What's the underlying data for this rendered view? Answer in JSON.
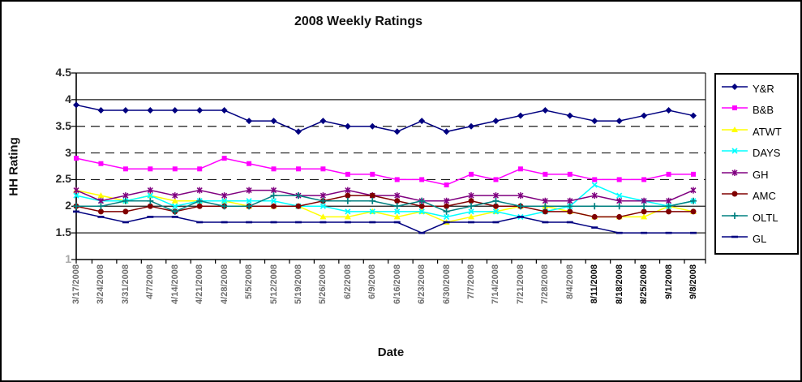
{
  "page": {
    "title": "2008 Weekly Ratings"
  },
  "chart_data": {
    "type": "line",
    "title": "2008 Weekly Ratings",
    "xlabel": "Date",
    "ylabel": "HH Rating",
    "ylim": [
      1,
      4.5
    ],
    "ytick_labels": [
      "4.5",
      "4",
      "3.5",
      "3",
      "2.5",
      "2",
      "1.5",
      "1"
    ],
    "grid": "horizontal gridlines every 0.5, lines at 2.5/3/3.5 appear dashed",
    "legend_position": "right",
    "x_tick_emphasis_from_index": 21,
    "x": [
      "3/17/2008",
      "3/24/2008",
      "3/31/2008",
      "4/7/2008",
      "4/14/2008",
      "4/21/2008",
      "4/28/2008",
      "5/5/2008",
      "5/12/2008",
      "5/19/2008",
      "5/26/2008",
      "6/2/2008",
      "6/9/2008",
      "6/16/2008",
      "6/23/2008",
      "6/30/2008",
      "7/7/2008",
      "7/14/2008",
      "7/21/2008",
      "7/28/2008",
      "8/4/2008",
      "8/11/2008",
      "8/18/2008",
      "8/25/2008",
      "9/1/2008",
      "9/8/2008"
    ],
    "series": [
      {
        "name": "Y&R",
        "marker": "diamond",
        "color": "#000080",
        "values": [
          3.9,
          3.8,
          3.8,
          3.8,
          3.8,
          3.8,
          3.8,
          3.6,
          3.6,
          3.4,
          3.6,
          3.5,
          3.5,
          3.4,
          3.6,
          3.4,
          3.5,
          3.6,
          3.7,
          3.8,
          3.7,
          3.6,
          3.6,
          3.7,
          3.8,
          3.7
        ]
      },
      {
        "name": "B&B",
        "marker": "square",
        "color": "#FF00FF",
        "values": [
          2.9,
          2.8,
          2.7,
          2.7,
          2.7,
          2.7,
          2.9,
          2.8,
          2.7,
          2.7,
          2.7,
          2.6,
          2.6,
          2.5,
          2.5,
          2.4,
          2.6,
          2.5,
          2.7,
          2.6,
          2.6,
          2.5,
          2.5,
          2.5,
          2.6,
          2.6
        ]
      },
      {
        "name": "ATWT",
        "marker": "triangle",
        "color": "#FFFF00",
        "values": [
          2.3,
          2.2,
          2.1,
          2.2,
          2.1,
          2.1,
          2.1,
          2.0,
          2.0,
          2.0,
          1.8,
          1.8,
          1.9,
          1.8,
          1.9,
          1.7,
          1.8,
          1.9,
          2.0,
          2.0,
          1.9,
          1.8,
          1.8,
          1.8,
          2.0,
          1.9
        ]
      },
      {
        "name": "DAYS",
        "marker": "x",
        "color": "#00FFFF",
        "values": [
          2.2,
          2.1,
          2.1,
          2.2,
          2.0,
          2.1,
          2.1,
          2.1,
          2.1,
          2.0,
          2.0,
          1.9,
          1.9,
          1.9,
          1.9,
          1.8,
          1.9,
          1.9,
          1.8,
          1.9,
          2.0,
          2.4,
          2.2,
          2.1,
          2.0,
          2.1
        ]
      },
      {
        "name": "GH",
        "marker": "star",
        "color": "#800080",
        "values": [
          2.3,
          2.1,
          2.2,
          2.3,
          2.2,
          2.3,
          2.2,
          2.3,
          2.3,
          2.2,
          2.2,
          2.3,
          2.2,
          2.2,
          2.1,
          2.1,
          2.2,
          2.2,
          2.2,
          2.1,
          2.1,
          2.2,
          2.1,
          2.1,
          2.1,
          2.3
        ]
      },
      {
        "name": "AMC",
        "marker": "circle",
        "color": "#800000",
        "values": [
          2.0,
          1.9,
          1.9,
          2.0,
          1.9,
          2.0,
          2.0,
          2.0,
          2.0,
          2.0,
          2.1,
          2.2,
          2.2,
          2.1,
          2.0,
          2.0,
          2.1,
          2.0,
          2.0,
          1.9,
          1.9,
          1.8,
          1.8,
          1.9,
          1.9,
          1.9
        ]
      },
      {
        "name": "OLTL",
        "marker": "plus",
        "color": "#008080",
        "values": [
          2.0,
          2.0,
          2.1,
          2.1,
          1.9,
          2.1,
          2.0,
          2.0,
          2.2,
          2.2,
          2.1,
          2.1,
          2.1,
          2.0,
          2.1,
          1.9,
          2.0,
          2.1,
          2.0,
          2.0,
          2.0,
          2.0,
          2.0,
          2.0,
          2.0,
          2.1
        ]
      },
      {
        "name": "GL",
        "marker": "dash",
        "color": "#000080",
        "values": [
          1.9,
          1.8,
          1.7,
          1.8,
          1.8,
          1.7,
          1.7,
          1.7,
          1.7,
          1.7,
          1.7,
          1.7,
          1.7,
          1.7,
          1.5,
          1.7,
          1.7,
          1.7,
          1.8,
          1.7,
          1.7,
          1.6,
          1.5,
          1.5,
          1.5,
          1.5
        ]
      }
    ]
  }
}
